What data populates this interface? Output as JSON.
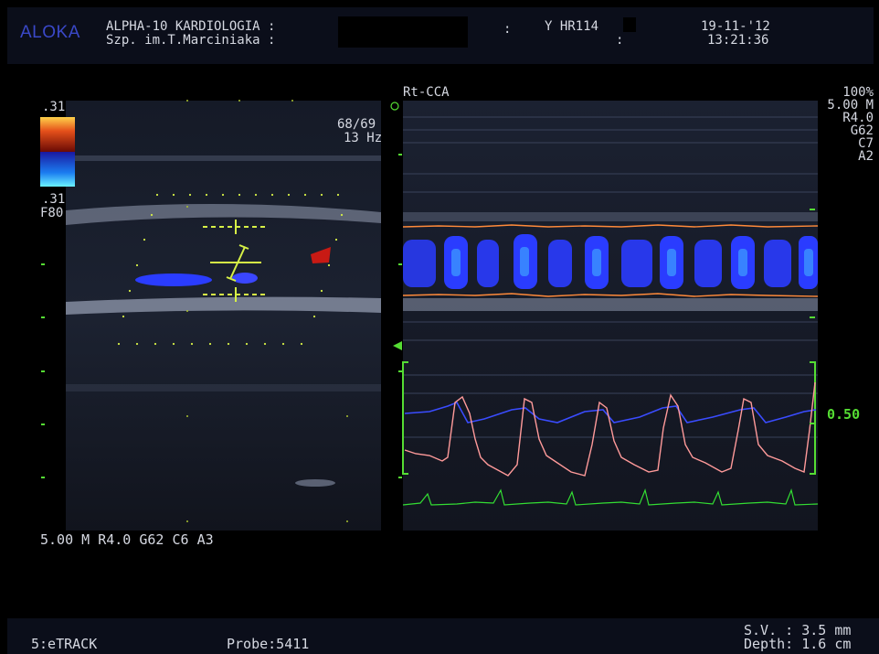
{
  "header": {
    "brand": "ALOKA",
    "system_line": "ALPHA-10 KARDIOLOGIA :",
    "hospital_line": "Szp. im.T.Marciniaka :",
    "colon1": ":",
    "hr_label": "Y HR114",
    "colon2": ":",
    "date": "19-11-'12",
    "time": "13:21:36"
  },
  "bmode": {
    "scale_top": ".31",
    "scale_bottom": ".31",
    "filter": "F80",
    "frame_rate": "68/69",
    "frequency": "13 Hz",
    "params": "5.00 M R4.0 G62 C6 A3"
  },
  "mmode": {
    "label": "Rt-CCA",
    "power": "100%",
    "freq": "5.00 M",
    "r": "R4.0",
    "g": "G62",
    "c": "C7",
    "a": "A2",
    "marker_value": "0.50"
  },
  "footer": {
    "mode": "5:eTRACK",
    "probe": "Probe:5411",
    "sv": "S.V. : 3.5 mm",
    "depth": "Depth: 1.6 cm"
  },
  "colors": {
    "accent_green": "#55dd33",
    "doppler_blue": "#2a3cff",
    "wall_orange": "#ff8a3a",
    "trace_pink": "#ff9a9a",
    "ecg_green": "#33dd33"
  }
}
